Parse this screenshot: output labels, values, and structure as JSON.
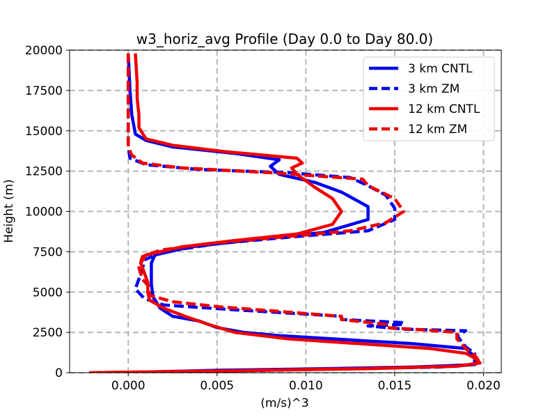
{
  "chart_data": {
    "type": "line",
    "title": "w3_horiz_avg Profile (Day 0.0 to Day 80.0)",
    "xlabel": "(m/s)^3",
    "ylabel": "Height (m)",
    "xlim": [
      -0.0033,
      0.021
    ],
    "ylim": [
      0,
      20000
    ],
    "xticks": [
      0.0,
      0.005,
      0.01,
      0.015,
      0.02
    ],
    "xtick_labels": [
      "0.000",
      "0.005",
      "0.010",
      "0.015",
      "0.020"
    ],
    "yticks": [
      0,
      2500,
      5000,
      7500,
      10000,
      12500,
      15000,
      17500,
      20000
    ],
    "ytick_labels": [
      "0",
      "2500",
      "5000",
      "7500",
      "10000",
      "12500",
      "15000",
      "17500",
      "20000"
    ],
    "grid": true,
    "legend_position": "top-right",
    "series": [
      {
        "name": "3 km CNTL",
        "color": "#0000ee",
        "dash": "solid",
        "points": [
          [
            -0.0005,
            0
          ],
          [
            0.005,
            150
          ],
          [
            0.011,
            250
          ],
          [
            0.016,
            350
          ],
          [
            0.0195,
            500
          ],
          [
            0.0195,
            1000
          ],
          [
            0.019,
            1500
          ],
          [
            0.016,
            1800
          ],
          [
            0.013,
            2000
          ],
          [
            0.0085,
            2300
          ],
          [
            0.0065,
            2500
          ],
          [
            0.005,
            2800
          ],
          [
            0.004,
            3200
          ],
          [
            0.0025,
            3500
          ],
          [
            0.0018,
            4000
          ],
          [
            0.0014,
            4700
          ],
          [
            0.0013,
            5500
          ],
          [
            0.0013,
            6200
          ],
          [
            0.0013,
            6800
          ],
          [
            0.0015,
            7300
          ],
          [
            0.0035,
            7800
          ],
          [
            0.0075,
            8300
          ],
          [
            0.011,
            8700
          ],
          [
            0.0135,
            9500
          ],
          [
            0.0135,
            10300
          ],
          [
            0.012,
            11200
          ],
          [
            0.0105,
            11800
          ],
          [
            0.0085,
            12300
          ],
          [
            0.008,
            12800
          ],
          [
            0.0085,
            13200
          ],
          [
            0.006,
            13600
          ],
          [
            0.0025,
            14000
          ],
          [
            0.001,
            14400
          ],
          [
            0.0004,
            14800
          ],
          [
            0.0002,
            16000
          ],
          [
            0.0001,
            17500
          ],
          [
            0.0,
            19800
          ]
        ]
      },
      {
        "name": "3 km ZM",
        "color": "#0000ee",
        "dash": "dashed",
        "points": [
          [
            0.0,
            0
          ],
          [
            0.006,
            150
          ],
          [
            0.012,
            250
          ],
          [
            0.0175,
            350
          ],
          [
            0.0195,
            500
          ],
          [
            0.0195,
            1200
          ],
          [
            0.019,
            1600
          ],
          [
            0.0185,
            2300
          ],
          [
            0.019,
            2600
          ],
          [
            0.0155,
            2700
          ],
          [
            0.0135,
            2900
          ],
          [
            0.0155,
            3000
          ],
          [
            0.0155,
            3100
          ],
          [
            0.012,
            3300
          ],
          [
            0.012,
            3500
          ],
          [
            0.006,
            3900
          ],
          [
            0.002,
            4200
          ],
          [
            0.0009,
            4600
          ],
          [
            0.0004,
            5200
          ],
          [
            0.0006,
            5800
          ],
          [
            0.0008,
            6400
          ],
          [
            0.0009,
            7000
          ],
          [
            0.002,
            7500
          ],
          [
            0.005,
            8000
          ],
          [
            0.009,
            8400
          ],
          [
            0.0135,
            8800
          ],
          [
            0.015,
            9500
          ],
          [
            0.015,
            10200
          ],
          [
            0.0145,
            11000
          ],
          [
            0.0135,
            11600
          ],
          [
            0.0125,
            12100
          ],
          [
            0.009,
            12400
          ],
          [
            0.004,
            12600
          ],
          [
            0.001,
            12900
          ],
          [
            0.0001,
            13300
          ],
          [
            0.0,
            14000
          ],
          [
            0.0,
            16000
          ],
          [
            0.0,
            17500
          ],
          [
            0.0,
            19800
          ]
        ]
      },
      {
        "name": "12 km CNTL",
        "color": "#ee0000",
        "dash": "solid",
        "points": [
          [
            -0.0022,
            0
          ],
          [
            0.006,
            120
          ],
          [
            0.0135,
            250
          ],
          [
            0.0185,
            400
          ],
          [
            0.0198,
            600
          ],
          [
            0.0195,
            900
          ],
          [
            0.019,
            1200
          ],
          [
            0.017,
            1500
          ],
          [
            0.013,
            1800
          ],
          [
            0.009,
            2100
          ],
          [
            0.006,
            2500
          ],
          [
            0.0045,
            3000
          ],
          [
            0.0032,
            3500
          ],
          [
            0.002,
            4000
          ],
          [
            0.0012,
            4500
          ],
          [
            0.0011,
            5000
          ],
          [
            0.0011,
            5600
          ],
          [
            0.0009,
            6200
          ],
          [
            0.0007,
            6800
          ],
          [
            0.001,
            7300
          ],
          [
            0.003,
            7800
          ],
          [
            0.006,
            8200
          ],
          [
            0.0095,
            8600
          ],
          [
            0.0115,
            9200
          ],
          [
            0.012,
            10000
          ],
          [
            0.0115,
            10800
          ],
          [
            0.0105,
            11500
          ],
          [
            0.0095,
            12300
          ],
          [
            0.0092,
            12700
          ],
          [
            0.0098,
            13000
          ],
          [
            0.0095,
            13300
          ],
          [
            0.0055,
            13700
          ],
          [
            0.0025,
            14100
          ],
          [
            0.001,
            14500
          ],
          [
            0.0006,
            15200
          ],
          [
            0.0006,
            16000
          ],
          [
            0.0005,
            17000
          ],
          [
            0.0005,
            18000
          ],
          [
            0.0004,
            19800
          ]
        ]
      },
      {
        "name": "12 km ZM",
        "color": "#ee0000",
        "dash": "dashed",
        "points": [
          [
            -0.002,
            0
          ],
          [
            0.006,
            120
          ],
          [
            0.013,
            250
          ],
          [
            0.0185,
            400
          ],
          [
            0.0198,
            600
          ],
          [
            0.0195,
            1100
          ],
          [
            0.019,
            1500
          ],
          [
            0.0185,
            2100
          ],
          [
            0.0185,
            2500
          ],
          [
            0.016,
            2700
          ],
          [
            0.0145,
            2800
          ],
          [
            0.0145,
            3000
          ],
          [
            0.012,
            3300
          ],
          [
            0.012,
            3500
          ],
          [
            0.0085,
            3800
          ],
          [
            0.005,
            4100
          ],
          [
            0.0025,
            4400
          ],
          [
            0.0012,
            4800
          ],
          [
            0.0012,
            5300
          ],
          [
            0.0008,
            5800
          ],
          [
            0.0006,
            6500
          ],
          [
            0.0008,
            7200
          ],
          [
            0.0018,
            7600
          ],
          [
            0.0045,
            8000
          ],
          [
            0.0085,
            8400
          ],
          [
            0.0125,
            8800
          ],
          [
            0.0145,
            9300
          ],
          [
            0.0155,
            10000
          ],
          [
            0.015,
            10800
          ],
          [
            0.0135,
            11600
          ],
          [
            0.0132,
            12000
          ],
          [
            0.008,
            12400
          ],
          [
            0.003,
            12700
          ],
          [
            0.0008,
            13000
          ],
          [
            0.0002,
            13500
          ],
          [
            0.0,
            14000
          ],
          [
            0.0,
            16000
          ],
          [
            0.0,
            17500
          ],
          [
            0.0,
            19800
          ]
        ]
      }
    ]
  }
}
